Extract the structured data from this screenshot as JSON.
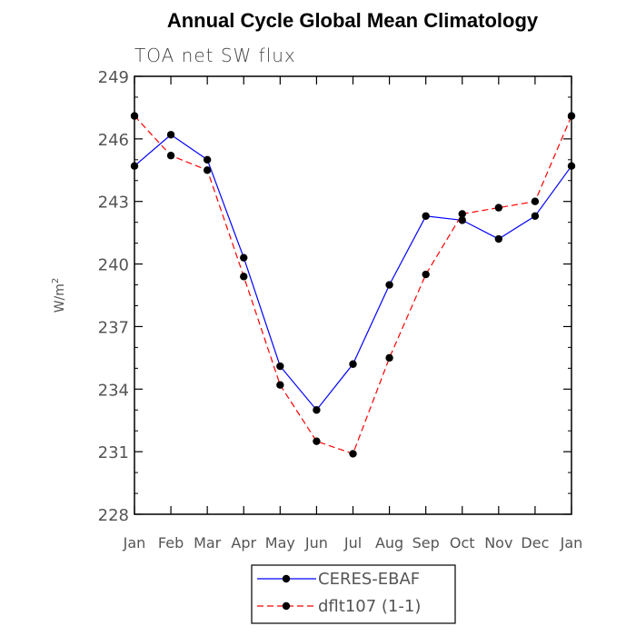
{
  "chart_data": {
    "type": "line",
    "title": "Annual Cycle Global Mean Climatology",
    "subtitle": "TOA net SW flux",
    "xlabel": "",
    "ylabel": "W/m",
    "ylabel_superscript": "2",
    "categories": [
      "Jan",
      "Feb",
      "Mar",
      "Apr",
      "May",
      "Jun",
      "Jul",
      "Aug",
      "Sep",
      "Oct",
      "Nov",
      "Dec",
      "Jan"
    ],
    "ylim": [
      228,
      249
    ],
    "yticks": [
      228,
      231,
      234,
      237,
      240,
      243,
      246,
      249
    ],
    "series": [
      {
        "name": "CERES-EBAF",
        "color": "#0000ff",
        "dash": "solid",
        "values": [
          244.7,
          246.2,
          245.0,
          240.3,
          235.1,
          233.0,
          235.2,
          239.0,
          242.3,
          242.1,
          241.2,
          242.3,
          244.7
        ]
      },
      {
        "name": "dflt107 (1-1)",
        "color": "#ff0000",
        "dash": "dashed",
        "values": [
          247.1,
          245.2,
          244.5,
          239.4,
          234.2,
          231.5,
          230.9,
          235.5,
          239.5,
          242.4,
          242.7,
          243.0,
          247.1
        ]
      }
    ],
    "legend": "bottom-center"
  }
}
